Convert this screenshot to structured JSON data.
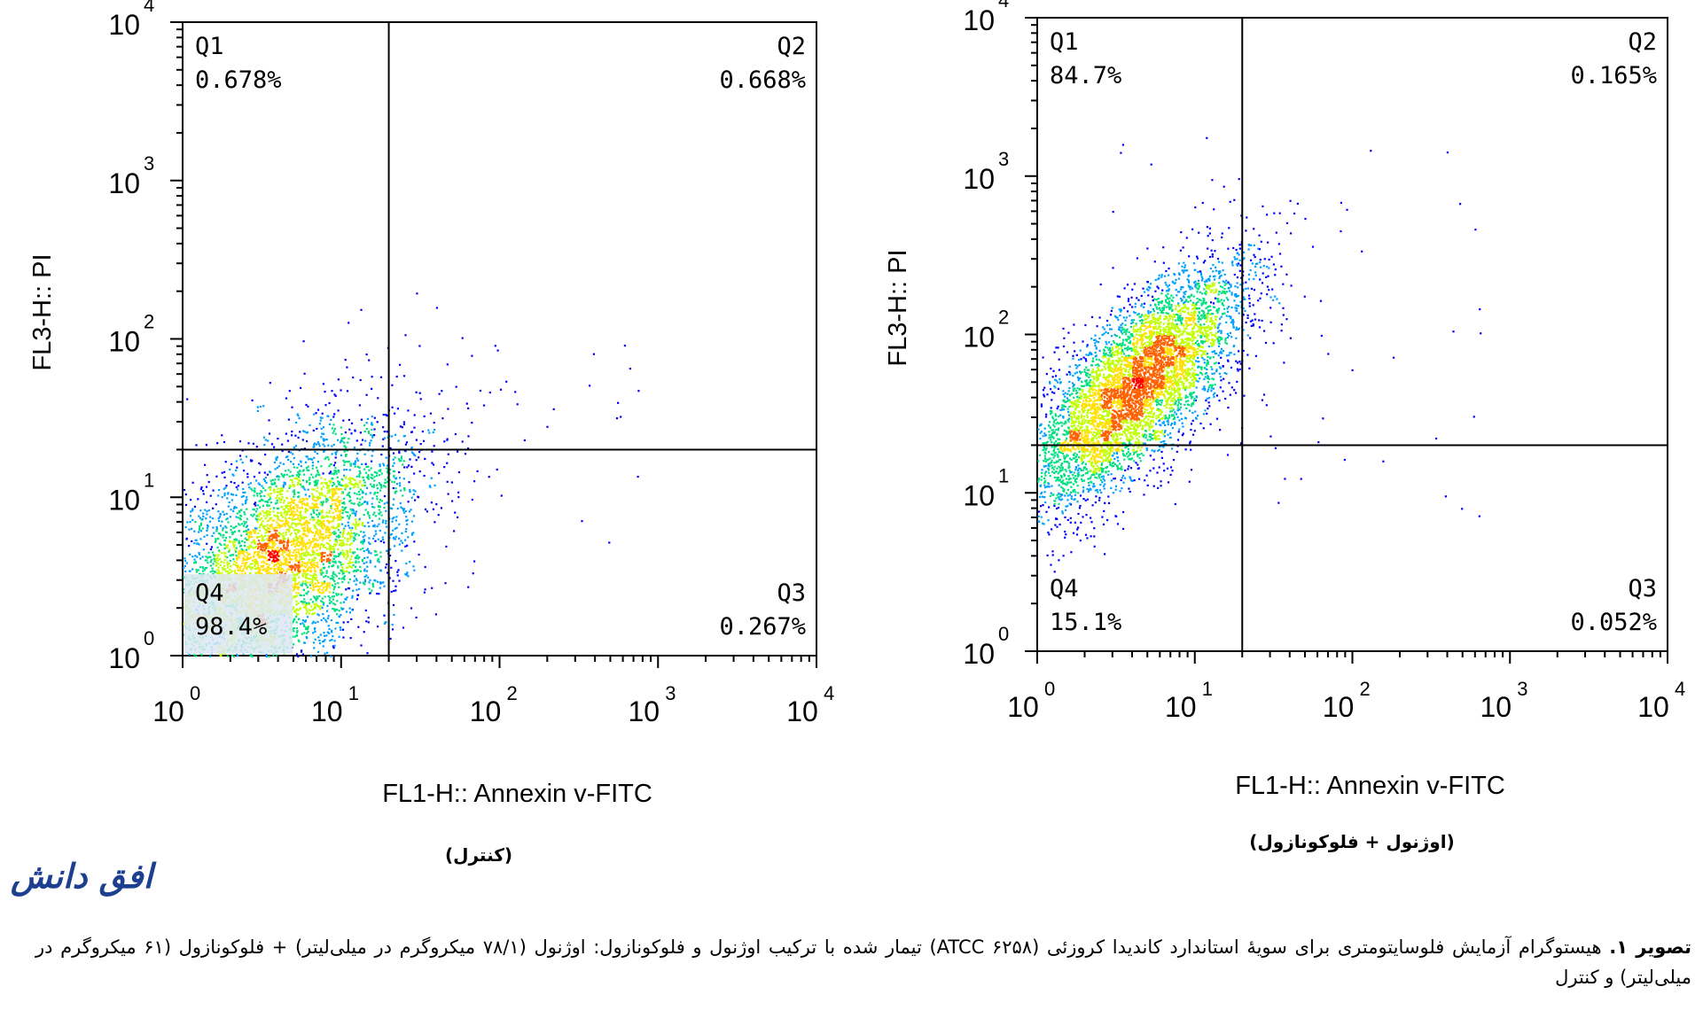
{
  "plots": [
    {
      "id": "control",
      "caption": "(کنترل)",
      "chart_data": {
        "type": "scatter",
        "subtype": "flow-cytometry density dot plot",
        "xlabel": "FL1-H:: Annexin v-FITC",
        "ylabel": "FL3-H:: PI",
        "xscale": "log",
        "yscale": "log",
        "xlim": [
          1,
          10000
        ],
        "ylim": [
          1,
          10000
        ],
        "x_ticks": [
          {
            "base": "10",
            "exp": "0"
          },
          {
            "base": "10",
            "exp": "1"
          },
          {
            "base": "10",
            "exp": "2"
          },
          {
            "base": "10",
            "exp": "3"
          },
          {
            "base": "10",
            "exp": "4"
          }
        ],
        "y_ticks": [
          {
            "base": "10",
            "exp": "0"
          },
          {
            "base": "10",
            "exp": "1"
          },
          {
            "base": "10",
            "exp": "2"
          },
          {
            "base": "10",
            "exp": "3"
          },
          {
            "base": "10",
            "exp": "4"
          }
        ],
        "gate": {
          "x": 20,
          "y": 20
        },
        "quadrants": [
          {
            "name": "Q1",
            "percent": "0.678%"
          },
          {
            "name": "Q2",
            "percent": "0.668%"
          },
          {
            "name": "Q3",
            "percent": "0.267%"
          },
          {
            "name": "Q4",
            "percent": "98.4%"
          }
        ],
        "population": {
          "center_x": 4,
          "center_y": 4,
          "spread_x": 0.42,
          "spread_y": 0.42,
          "correlation": 0.55,
          "count": 5200,
          "fraction_in_q4": 0.984
        },
        "colors": [
          "#0000ff",
          "#00a0ff",
          "#00e080",
          "#c0ff00",
          "#ffe000",
          "#ff6000",
          "#ff0000"
        ]
      }
    },
    {
      "id": "treated",
      "caption": "(اوژنول + فلوکونازول)",
      "chart_data": {
        "type": "scatter",
        "subtype": "flow-cytometry density dot plot",
        "xlabel": "FL1-H:: Annexin v-FITC",
        "ylabel": "FL3-H:: PI",
        "xscale": "log",
        "yscale": "log",
        "xlim": [
          1,
          10000
        ],
        "ylim": [
          1,
          10000
        ],
        "x_ticks": [
          {
            "base": "10",
            "exp": "0"
          },
          {
            "base": "10",
            "exp": "1"
          },
          {
            "base": "10",
            "exp": "2"
          },
          {
            "base": "10",
            "exp": "3"
          },
          {
            "base": "10",
            "exp": "4"
          }
        ],
        "y_ticks": [
          {
            "base": "10",
            "exp": "0"
          },
          {
            "base": "10",
            "exp": "1"
          },
          {
            "base": "10",
            "exp": "2"
          },
          {
            "base": "10",
            "exp": "3"
          },
          {
            "base": "10",
            "exp": "4"
          }
        ],
        "gate": {
          "x": 20,
          "y": 20
        },
        "quadrants": [
          {
            "name": "Q1",
            "percent": "84.7%"
          },
          {
            "name": "Q2",
            "percent": "0.165%"
          },
          {
            "name": "Q3",
            "percent": "0.052%"
          },
          {
            "name": "Q4",
            "percent": "15.1%"
          }
        ],
        "population": {
          "center_x": 4,
          "center_y": 45,
          "spread_x": 0.35,
          "spread_y": 0.38,
          "correlation": 0.75,
          "count": 5600,
          "fraction_in_q4": 0.151
        },
        "colors": [
          "#0000ff",
          "#00a0ff",
          "#00e080",
          "#c0ff00",
          "#ffe000",
          "#ff6000",
          "#ff0000"
        ]
      }
    }
  ],
  "brand": {
    "logo_text": "افق دانش"
  },
  "caption": {
    "label": "تصویر ۱.",
    "text": "هیستوگرام آزمایش فلوسایتومتری برای سویهٔ استاندارد کاندیدا کروزئی (ATCC ۶۲۵۸) تیمار شده با ترکیب اوژنول و فلوکونازول: اوژنول (۷۸/۱ میکروگرم در میلی‌لیتر) + فلوکونازول (۶۱ میکروگرم در میلی‌لیتر) و کنترل"
  }
}
